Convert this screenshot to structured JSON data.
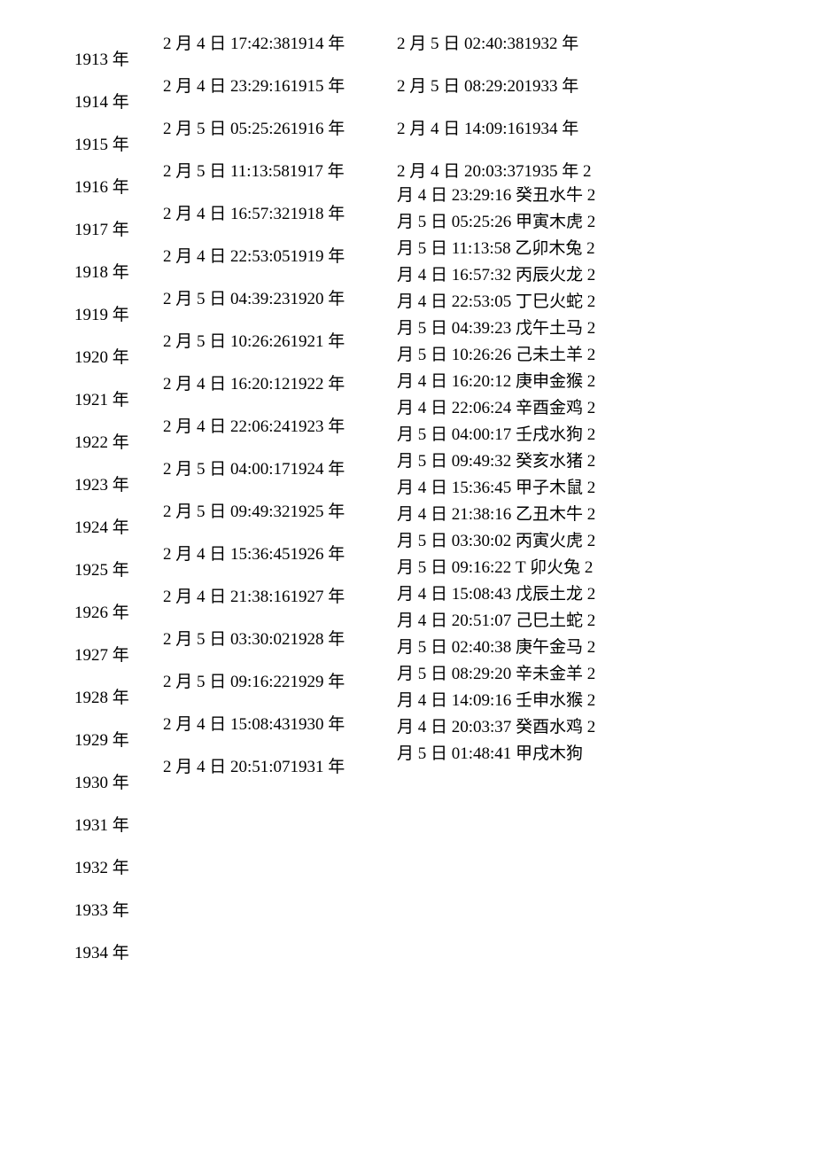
{
  "font_color": "#000000",
  "background_color": "#ffffff",
  "font_size": 19,
  "col1_line_height": 48,
  "col3_line_height": 30,
  "col1": [
    "1913 年",
    "1914 年",
    "1915 年",
    "1916 年",
    "1917 年",
    "1918 年",
    "1919 年",
    "1920 年",
    "1921 年",
    "1922 年",
    "1923 年",
    "1924 年",
    "1925 年",
    "1926 年",
    "1927 年",
    "1928 年",
    "1929 年",
    "1930 年",
    "1931 年",
    "1932 年",
    "1933 年",
    "1934 年"
  ],
  "col2": [
    "2 月  4 日  17:42:381914 年",
    "2 月  4 日  23:29:161915 年",
    "2 月  5 日  05:25:261916 年",
    "2 月  5 日  11:13:581917 年",
    "2 月  4 日  16:57:321918 年",
    "2 月  4 日  22:53:051919 年",
    "2 月  5 日  04:39:231920 年",
    "2 月  5 日  10:26:261921 年",
    "2 月  4 日  16:20:121922 年",
    "2 月  4 日  22:06:241923 年",
    "2 月  5 日  04:00:171924 年",
    "2 月  5 日  09:49:321925 年",
    "2 月  4 日  15:36:451926 年",
    "2 月  4 日  21:38:161927 年",
    "2 月  5 日  03:30:021928 年",
    "2 月  5 日  09:16:221929 年",
    "2 月  4 日  15:08:431930 年",
    "2 月  4 日  20:51:071931 年"
  ],
  "col_top": [
    "2 月  5 日  02:40:381932 年",
    "2 月  5 日  08:29:201933 年",
    "2 月  4 日  14:09:161934 年",
    "2 月  4 日  20:03:371935 年  2"
  ],
  "col3": [
    "月 4 日 23:29:16 癸丑水牛  2",
    "月 5 日 05:25:26 甲寅木虎  2",
    "月 5 日 11:13:58 乙卯木兔  2",
    "月 4 日 16:57:32 丙辰火龙  2",
    "月 4 日 22:53:05 丁巳火蛇  2",
    "月 5 日 04:39:23 戊午土马  2",
    "月 5 日 10:26:26 己未土羊  2",
    "月 4 日 16:20:12 庚申金猴  2",
    "月 4 日 22:06:24 辛酉金鸡  2",
    "月 5 日 04:00:17 壬戌水狗  2",
    "月 5 日 09:49:32 癸亥水猪  2",
    "月 4 日 15:36:45 甲子木鼠  2",
    "月 4 日 21:38:16 乙丑木牛  2",
    "月 5 日 03:30:02 丙寅火虎  2",
    "月 5 日 09:16:22 T 卯火兔  2",
    "月 4 日 15:08:43 戊辰土龙  2",
    "月 4 日 20:51:07 己巳土蛇  2",
    "月 5 日 02:40:38 庚午金马  2",
    "月 5 日 08:29:20 辛未金羊  2",
    "月 4 日 14:09:16 壬申水猴  2",
    "月 4 日 20:03:37 癸酉水鸡  2",
    "月 5 日 01:48:41 甲戌木狗"
  ]
}
